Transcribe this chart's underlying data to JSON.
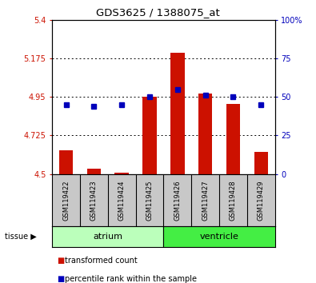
{
  "title": "GDS3625 / 1388075_at",
  "samples": [
    "GSM119422",
    "GSM119423",
    "GSM119424",
    "GSM119425",
    "GSM119426",
    "GSM119427",
    "GSM119428",
    "GSM119429"
  ],
  "transformed_count": [
    4.64,
    4.53,
    4.51,
    4.95,
    5.21,
    4.97,
    4.91,
    4.63
  ],
  "percentile_rank": [
    45,
    44,
    45,
    50,
    55,
    51,
    50,
    45
  ],
  "ylim_left": [
    4.5,
    5.4
  ],
  "ylim_right": [
    0,
    100
  ],
  "yticks_left": [
    4.5,
    4.725,
    4.95,
    5.175,
    5.4
  ],
  "ytick_labels_left": [
    "4.5",
    "4.725",
    "4.95",
    "5.175",
    "5.4"
  ],
  "yticks_right": [
    0,
    25,
    50,
    75,
    100
  ],
  "ytick_labels_right": [
    "0",
    "25",
    "50",
    "75",
    "100%"
  ],
  "group_atrium_color": "#bbffbb",
  "group_ventricle_color": "#44ee44",
  "bar_color": "#cc1100",
  "dot_color": "#0000bb",
  "bar_bottom": 4.5,
  "bar_width": 0.5,
  "sample_bg_color": "#c8c8c8",
  "legend_items": [
    {
      "label": "transformed count",
      "color": "#cc1100"
    },
    {
      "label": "percentile rank within the sample",
      "color": "#0000bb"
    }
  ]
}
